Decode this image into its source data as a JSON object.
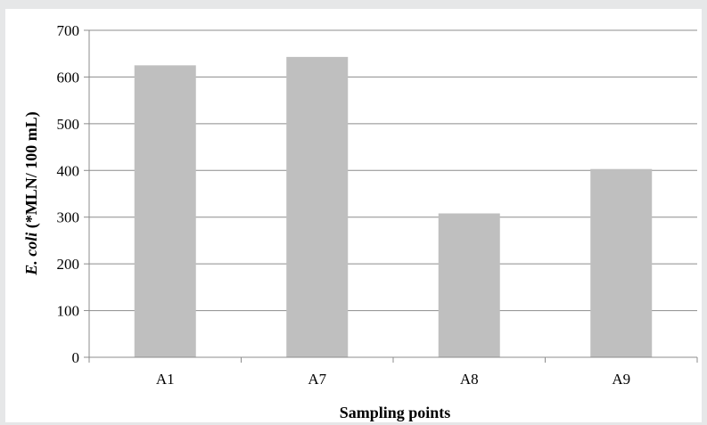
{
  "chart_data": {
    "type": "bar",
    "categories": [
      "A1",
      "A7",
      "A8",
      "A9"
    ],
    "values": [
      625,
      643,
      308,
      403
    ],
    "xlabel": "Sampling points",
    "ylabel_italic": "E. coli",
    "ylabel_rest": " (*MLN/ 100 mL)",
    "ylim": [
      0,
      700
    ],
    "yticks": [
      0,
      100,
      200,
      300,
      400,
      500,
      600,
      700
    ],
    "grid": true,
    "bar_color": "#bfbfbf",
    "grid_color": "#8c8c8c"
  }
}
